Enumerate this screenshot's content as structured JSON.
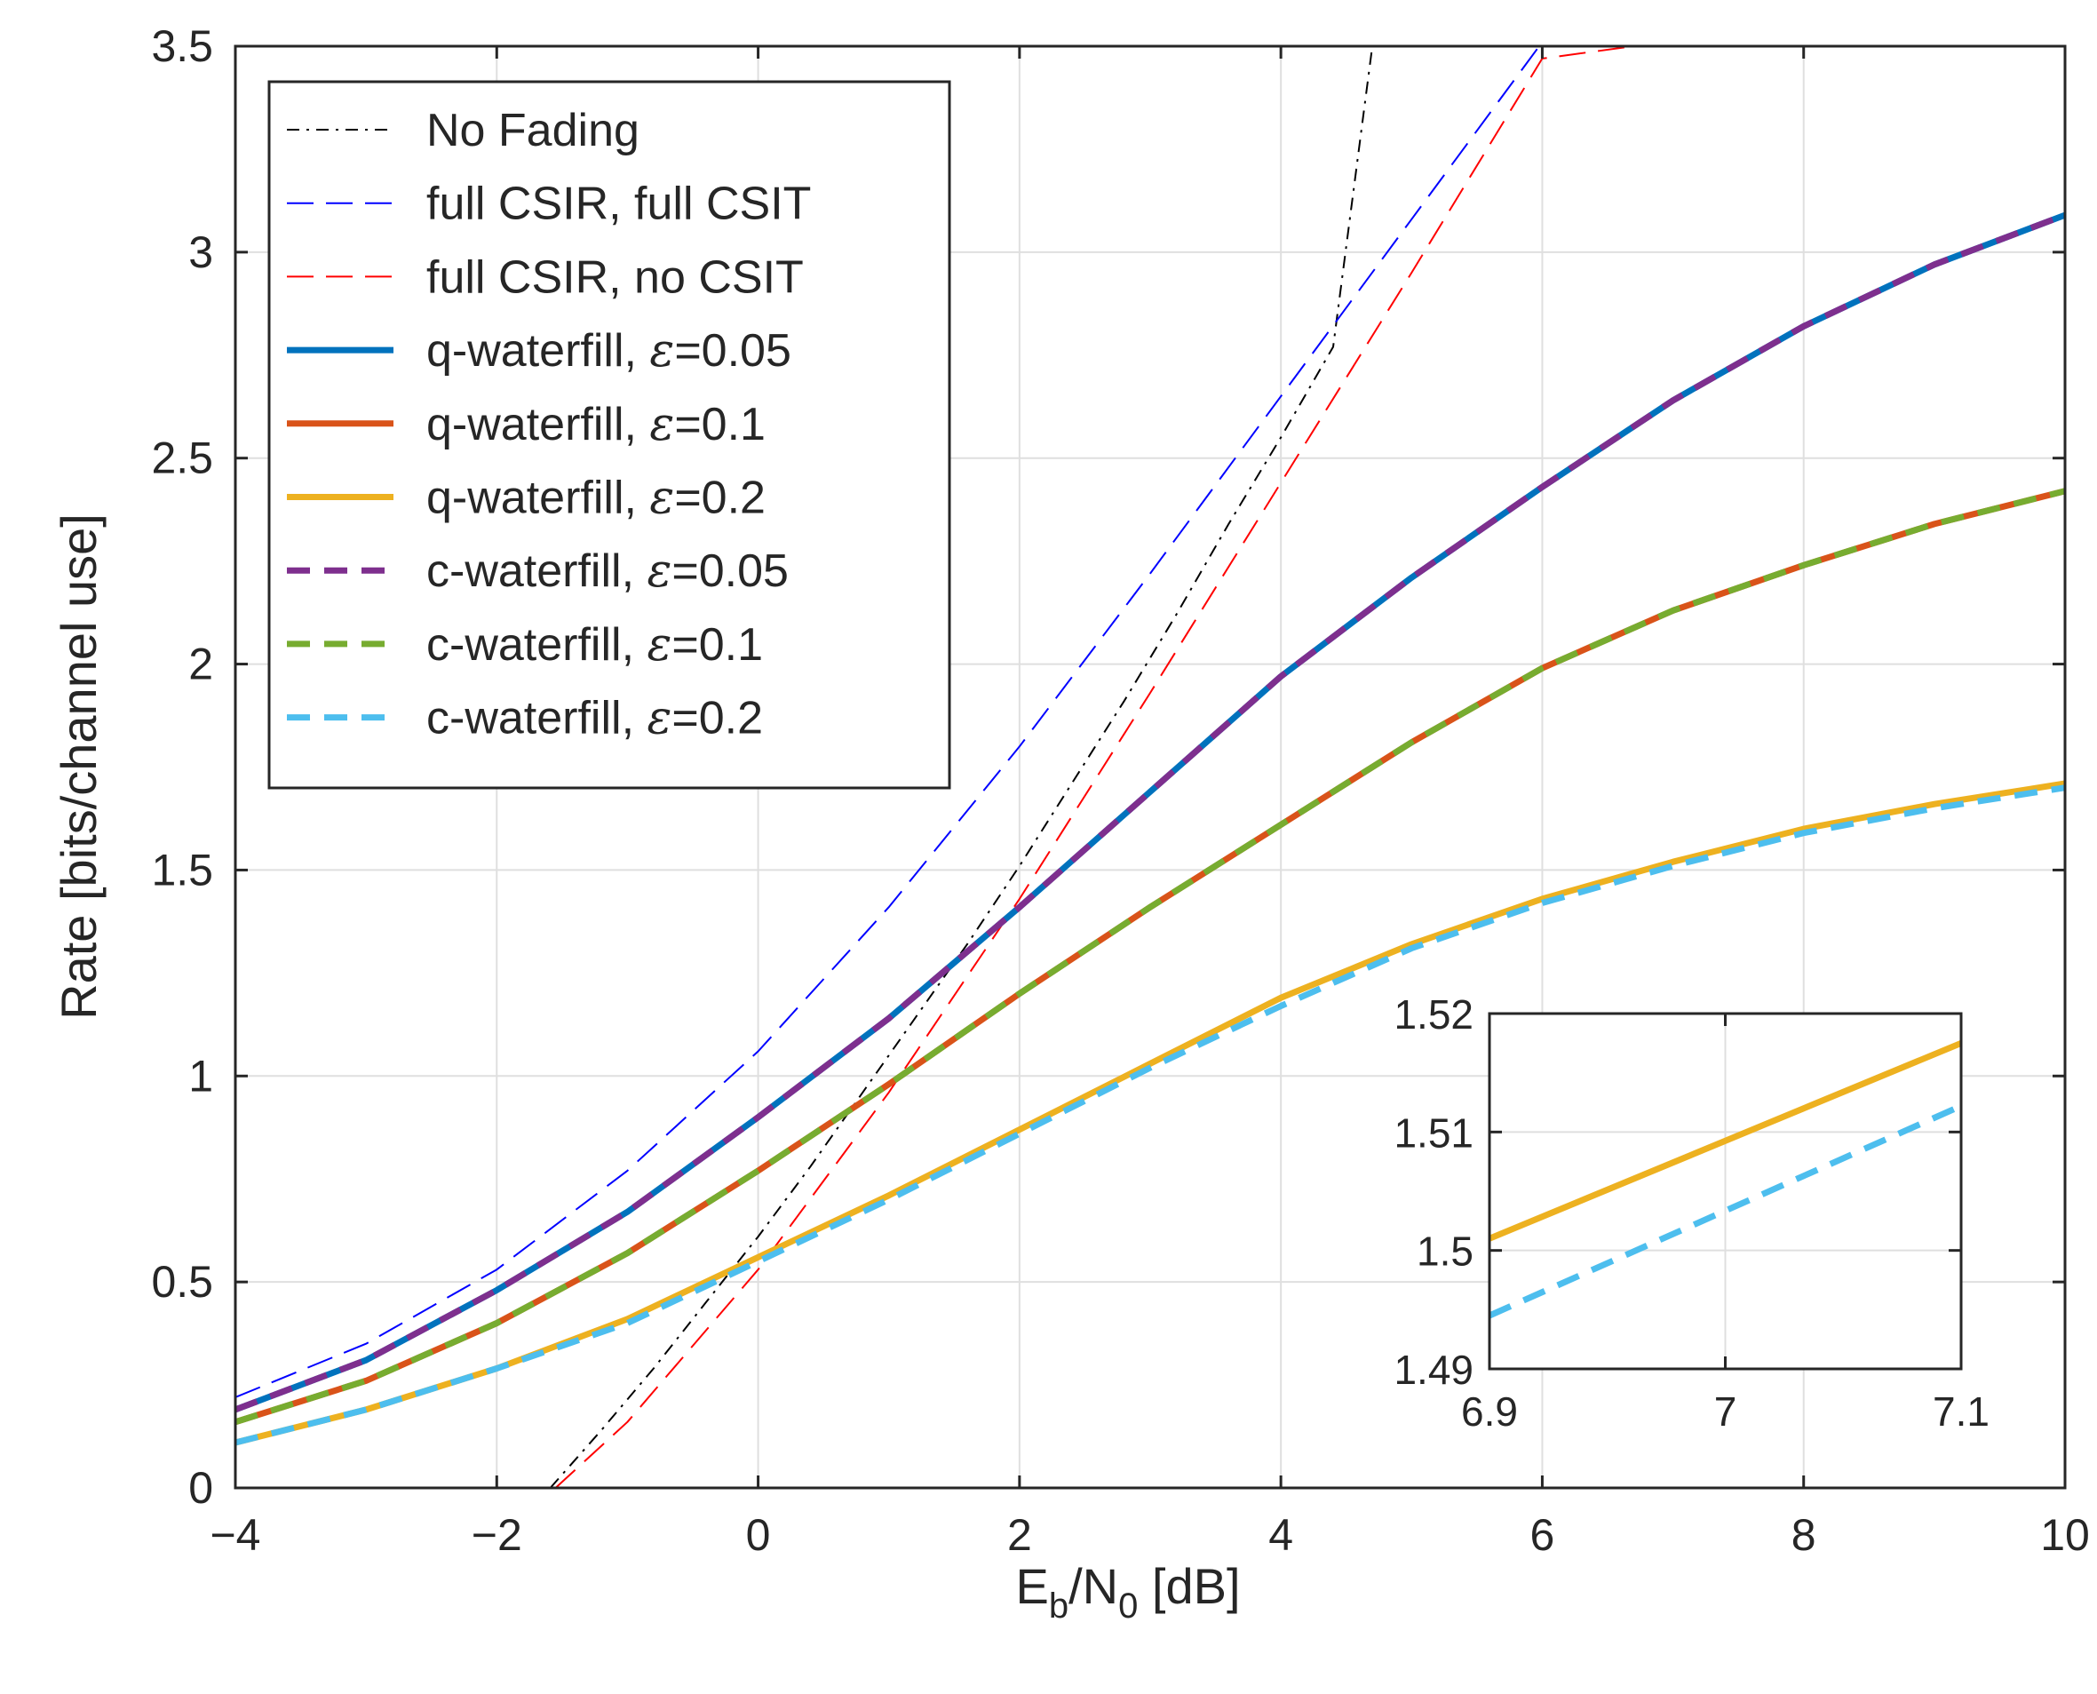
{
  "chart_data": {
    "type": "line",
    "title": "",
    "xlabel": {
      "main": "E",
      "sub1": "b",
      "mid": "/N",
      "sub2": "0",
      "tail": " [dB]"
    },
    "ylabel": "Rate [bits/channel use]",
    "xlim": [
      -4,
      10
    ],
    "ylim": [
      0,
      3.5
    ],
    "xticks": [
      -4,
      -2,
      0,
      2,
      4,
      6,
      8,
      10
    ],
    "xtick_labels": [
      "−4",
      "−2",
      "0",
      "2",
      "4",
      "6",
      "8",
      "10"
    ],
    "yticks": [
      0,
      0.5,
      1,
      1.5,
      2,
      2.5,
      3,
      3.5
    ],
    "ytick_labels": [
      "0",
      "0.5",
      "1",
      "1.5",
      "2",
      "2.5",
      "3",
      "3.5"
    ],
    "grid": true,
    "legend_position": "top-left",
    "series": [
      {
        "name": "No Fading",
        "label_prefix": "No Fading",
        "color": "#000000",
        "style": "dashdot",
        "width": 2,
        "x": [
          -1.59,
          -1.2,
          -0.8,
          -0.4,
          0,
          0.4,
          0.8,
          1.2,
          1.6,
          2.0,
          2.4,
          2.8,
          3.2,
          3.6,
          4.0,
          4.4,
          4.7
        ],
        "y": [
          0,
          0.14,
          0.29,
          0.45,
          0.61,
          0.78,
          0.96,
          1.14,
          1.32,
          1.51,
          1.71,
          1.91,
          2.12,
          2.34,
          2.55,
          2.77,
          3.5
        ]
      },
      {
        "name": "full CSIR, full CSIT",
        "label_prefix": "full CSIR, full CSIT",
        "color": "#0000ff",
        "style": "dashed",
        "width": 2,
        "x": [
          -4,
          -3,
          -2,
          -1,
          0,
          1,
          2,
          3,
          4,
          5,
          6,
          6.5
        ],
        "y": [
          0.22,
          0.35,
          0.53,
          0.77,
          1.06,
          1.41,
          1.8,
          2.22,
          2.65,
          3.08,
          3.51,
          3.5
        ]
      },
      {
        "name": "full CSIR, no CSIT",
        "label_prefix": "full CSIR, no CSIT",
        "color": "#ff0000",
        "style": "dashed",
        "width": 2,
        "x": [
          -1.55,
          -1,
          0,
          1,
          2,
          3,
          4,
          5,
          6,
          6.7
        ],
        "y": [
          0,
          0.16,
          0.53,
          0.96,
          1.43,
          1.93,
          2.44,
          2.95,
          3.47,
          3.5
        ]
      },
      {
        "name": "q-waterfill, ε=0.05",
        "label_prefix": "q-waterfill, ",
        "epsilon": "0.05",
        "color": "#0072bd",
        "style": "solid",
        "width": 7,
        "x": [
          -4,
          -3,
          -2,
          -1,
          0,
          1,
          2,
          3,
          4,
          5,
          6,
          7,
          8,
          9,
          10
        ],
        "y": [
          0.19,
          0.31,
          0.48,
          0.67,
          0.9,
          1.14,
          1.41,
          1.69,
          1.97,
          2.21,
          2.43,
          2.64,
          2.82,
          2.97,
          3.09
        ]
      },
      {
        "name": "q-waterfill, ε=0.1",
        "label_prefix": "q-waterfill, ",
        "epsilon": "0.1",
        "color": "#d95319",
        "style": "solid",
        "width": 7,
        "x": [
          -4,
          -3,
          -2,
          -1,
          0,
          1,
          2,
          3,
          4,
          5,
          6,
          7,
          8,
          9,
          10
        ],
        "y": [
          0.16,
          0.26,
          0.4,
          0.57,
          0.77,
          0.98,
          1.2,
          1.41,
          1.61,
          1.81,
          1.99,
          2.13,
          2.24,
          2.34,
          2.42
        ]
      },
      {
        "name": "q-waterfill, ε=0.2",
        "label_prefix": "q-waterfill, ",
        "epsilon": "0.2",
        "color": "#edb120",
        "style": "solid",
        "width": 7,
        "x": [
          -4,
          -3,
          -2,
          -1,
          0,
          1,
          2,
          3,
          4,
          5,
          6,
          7,
          8,
          9,
          10
        ],
        "y": [
          0.11,
          0.19,
          0.29,
          0.41,
          0.56,
          0.71,
          0.87,
          1.03,
          1.19,
          1.32,
          1.43,
          1.52,
          1.6,
          1.66,
          1.71
        ]
      },
      {
        "name": "c-waterfill, ε=0.05",
        "label_prefix": "c-waterfill, ",
        "epsilon": "0.05",
        "color": "#7e2f8e",
        "style": "dashed",
        "width": 7,
        "x": [
          -4,
          -3,
          -2,
          -1,
          0,
          1,
          2,
          3,
          4,
          5,
          6,
          7,
          8,
          9,
          10
        ],
        "y": [
          0.19,
          0.31,
          0.48,
          0.67,
          0.9,
          1.14,
          1.41,
          1.69,
          1.97,
          2.21,
          2.43,
          2.64,
          2.82,
          2.97,
          3.09
        ]
      },
      {
        "name": "c-waterfill, ε=0.1",
        "label_prefix": "c-waterfill, ",
        "epsilon": "0.1",
        "color": "#77ac30",
        "style": "dashed",
        "width": 7,
        "x": [
          -4,
          -3,
          -2,
          -1,
          0,
          1,
          2,
          3,
          4,
          5,
          6,
          7,
          8,
          9,
          10
        ],
        "y": [
          0.16,
          0.26,
          0.4,
          0.57,
          0.77,
          0.98,
          1.2,
          1.41,
          1.61,
          1.81,
          1.99,
          2.13,
          2.24,
          2.34,
          2.42
        ]
      },
      {
        "name": "c-waterfill, ε=0.2",
        "label_prefix": "c-waterfill, ",
        "epsilon": "0.2",
        "color": "#4dbeee",
        "style": "dashed",
        "width": 7,
        "x": [
          -4,
          -3,
          -2,
          -1,
          0,
          1,
          2,
          3,
          4,
          5,
          6,
          7,
          8,
          9,
          10
        ],
        "y": [
          0.11,
          0.19,
          0.29,
          0.4,
          0.55,
          0.7,
          0.86,
          1.02,
          1.17,
          1.31,
          1.42,
          1.51,
          1.59,
          1.65,
          1.7
        ]
      }
    ],
    "inset": {
      "xlim": [
        6.9,
        7.1
      ],
      "ylim": [
        1.49,
        1.52
      ],
      "xticks": [
        6.9,
        7,
        7.1
      ],
      "xtick_labels": [
        "6.9",
        "7",
        "7.1"
      ],
      "yticks": [
        1.49,
        1.5,
        1.51,
        1.52
      ],
      "ytick_labels": [
        "1.49",
        "1.5",
        "1.51",
        "1.52"
      ],
      "series": [
        {
          "name": "q-waterfill, ε=0.2",
          "color": "#edb120",
          "style": "solid",
          "width": 7,
          "x": [
            6.9,
            7.1
          ],
          "y": [
            1.501,
            1.5175
          ]
        },
        {
          "name": "c-waterfill, ε=0.2",
          "color": "#4dbeee",
          "style": "dashed",
          "width": 7,
          "x": [
            6.9,
            7.1
          ],
          "y": [
            1.4945,
            1.5122
          ]
        }
      ]
    }
  }
}
